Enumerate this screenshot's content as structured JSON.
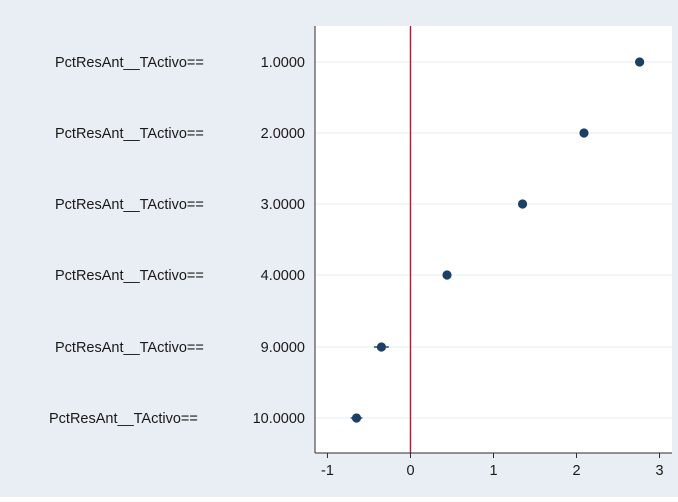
{
  "chart_data": {
    "type": "scatter",
    "orientation": "horizontal",
    "title": "",
    "xlabel": "",
    "ylabel": "",
    "categories": [
      "PctResAnt__TActivo== 1.0000",
      "PctResAnt__TActivo== 2.0000",
      "PctResAnt__TActivo== 3.0000",
      "PctResAnt__TActivo== 4.0000",
      "PctResAnt__TActivo== 9.0000",
      "PctResAnt__TActivo== 10.0000"
    ],
    "label_prefix": "PctResAnt__TActivo==",
    "label_values": [
      "1.0000",
      "2.0000",
      "3.0000",
      "4.0000",
      "9.0000",
      "10.0000"
    ],
    "points": [
      {
        "estimate": 2.76,
        "ci_low": 2.74,
        "ci_high": 2.78
      },
      {
        "estimate": 2.09,
        "ci_low": 2.07,
        "ci_high": 2.11
      },
      {
        "estimate": 1.35,
        "ci_low": 1.33,
        "ci_high": 1.37
      },
      {
        "estimate": 0.44,
        "ci_low": 0.42,
        "ci_high": 0.46
      },
      {
        "estimate": -0.35,
        "ci_low": -0.44,
        "ci_high": -0.26
      },
      {
        "estimate": -0.65,
        "ci_low": -0.72,
        "ci_high": -0.58
      }
    ],
    "xlim": [
      -1.15,
      3.15
    ],
    "xticks": [
      -1,
      0,
      1,
      2,
      3
    ],
    "reference_line": 0,
    "grid": true,
    "legend": "none",
    "colors": {
      "marker": "#1b3f66",
      "reference_line": "#c8102e",
      "outer_background": "#e8eef3",
      "plot_background": "#ffffff",
      "gridline": "#e6ecf0"
    }
  }
}
